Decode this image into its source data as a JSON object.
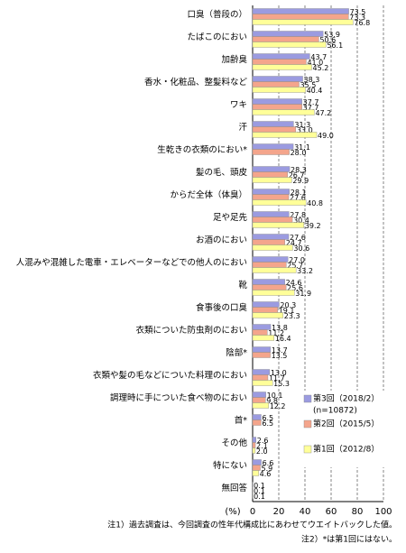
{
  "chart_data": {
    "type": "bar",
    "orientation": "horizontal",
    "categories": [
      "口臭（普段の）",
      "たばこのにおい",
      "加齢臭",
      "香水・化粧品、整髪料など",
      "ワキ",
      "汗",
      "生乾きの衣類のにおい*",
      "髪の毛、頭皮",
      "からだ全体（体臭）",
      "足や足先",
      "お酒のにおい",
      "人混みや混雑した電車・エレベーターなどでの他人のにおい",
      "靴",
      "食事後の口臭",
      "衣類についた防虫剤のにおい",
      "陰部*",
      "衣類や髪の毛などについた料理のにおい",
      "調理時に手についた食べ物のにおい",
      "首*",
      "その他",
      "特にない",
      "無回答"
    ],
    "series": [
      {
        "name": "第3回（2018/2）",
        "color": "#9b9be0",
        "values": [
          73.5,
          53.9,
          43.7,
          38.3,
          37.7,
          31.3,
          31.1,
          28.3,
          28.1,
          27.8,
          27.6,
          27.0,
          24.6,
          20.3,
          13.8,
          13.7,
          13.0,
          10.1,
          6.5,
          2.6,
          6.6,
          0.1
        ],
        "value_labels": [
          "73.5",
          "53.9",
          "43.7",
          "38.3",
          "37.7",
          "31.3",
          "31.1",
          "28.3",
          "28.1",
          "27.8",
          "27.6",
          "27.0",
          "24.6",
          "20.3",
          "13.8",
          "13.7",
          "13.0",
          "10.1",
          "6.5",
          "2.6",
          "6.6",
          "0.1"
        ]
      },
      {
        "name": "第2回（2015/5）",
        "color": "#f4a58c",
        "values": [
          73.3,
          50.6,
          41.0,
          35.5,
          37.7,
          33.0,
          28.0,
          26.7,
          27.6,
          30.4,
          24.7,
          25.7,
          25.6,
          19.1,
          11.2,
          13.5,
          11.7,
          9.8,
          6.5,
          2.1,
          5.9,
          0.1
        ],
        "value_labels": [
          "73.3",
          "50.6",
          "41.0",
          "35.5",
          "37.7",
          "33.0",
          "28.0",
          "26.7",
          "27.6",
          "30.4",
          "24.7",
          "25.7",
          "25.6",
          "19.1",
          "11.2",
          "13.5",
          "11.7",
          "9.8",
          "6.5",
          "2.1",
          "5.9",
          "0.1"
        ]
      },
      {
        "name": "第1回（2012/8）",
        "color": "#ffff99",
        "values": [
          76.8,
          56.1,
          45.2,
          40.4,
          47.2,
          49.0,
          null,
          29.9,
          40.8,
          39.2,
          30.6,
          33.2,
          31.9,
          23.3,
          16.4,
          null,
          15.3,
          12.2,
          null,
          2.0,
          4.6,
          0.1
        ],
        "value_labels": [
          "76.8",
          "56.1",
          "45.2",
          "40.4",
          "47.2",
          "49.0",
          null,
          "29.9",
          "40.8",
          "39.2",
          "30.6",
          "33.2",
          "31.9",
          "23.3",
          "16.4",
          null,
          "15.3",
          "12.2",
          null,
          "2.0",
          "4.6",
          "0.1"
        ]
      }
    ],
    "sample_note": "(n=10872)",
    "xlabel": "(%)",
    "xlim": [
      0,
      100
    ],
    "xticks": [
      0,
      20,
      40,
      60,
      80,
      100
    ],
    "grid": true,
    "notes": [
      "注1）過去調査は、今回調査の性年代構成比にあわせてウエイトバックした値。",
      "注2）*は第1回にはない。"
    ]
  }
}
